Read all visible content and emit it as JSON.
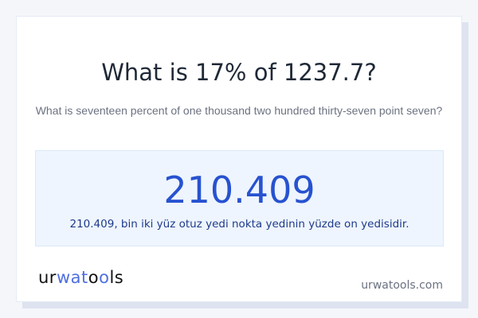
{
  "question": "What is 17% of 1237.7?",
  "question_words": "What is seventeen percent of one thousand two hundred thirty-seven point seven?",
  "result": {
    "value": "210.409",
    "words": "210.409, bin iki yüz otuz yedi nokta yedinin yüzde on yedisidir."
  },
  "footer": {
    "logo": "urwatools",
    "site": "urwatools.com"
  },
  "colors": {
    "accent": "#2752d0",
    "background": "#f4f6fa"
  }
}
